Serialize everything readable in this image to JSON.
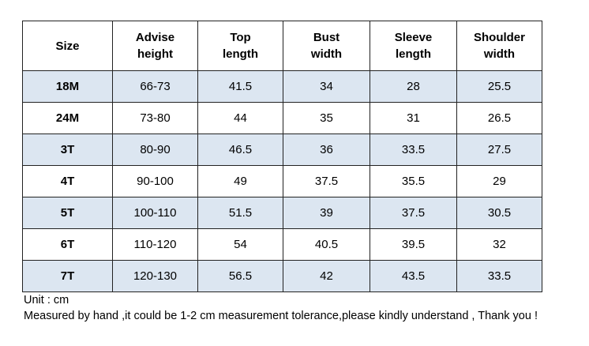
{
  "table": {
    "header": [
      [
        "Size"
      ],
      [
        "Advise",
        "height"
      ],
      [
        "Top",
        "length"
      ],
      [
        "Bust",
        "width"
      ],
      [
        "Sleeve",
        "length"
      ],
      [
        "Shoulder",
        "width"
      ]
    ],
    "rows": [
      [
        "18M",
        "66-73",
        "41.5",
        "34",
        "28",
        "25.5"
      ],
      [
        "24M",
        "73-80",
        "44",
        "35",
        "31",
        "26.5"
      ],
      [
        "3T",
        "80-90",
        "46.5",
        "36",
        "33.5",
        "27.5"
      ],
      [
        "4T",
        "90-100",
        "49",
        "37.5",
        "35.5",
        "29"
      ],
      [
        "5T",
        "100-110",
        "51.5",
        "39",
        "37.5",
        "30.5"
      ],
      [
        "6T",
        "110-120",
        "54",
        "40.5",
        "39.5",
        "32"
      ],
      [
        "7T",
        "120-130",
        "56.5",
        "42",
        "43.5",
        "33.5"
      ]
    ]
  },
  "notes": [
    "Unit : cm",
    "Measured by hand ,it could be 1-2 cm measurement tolerance,please kindly understand , Thank you !"
  ]
}
